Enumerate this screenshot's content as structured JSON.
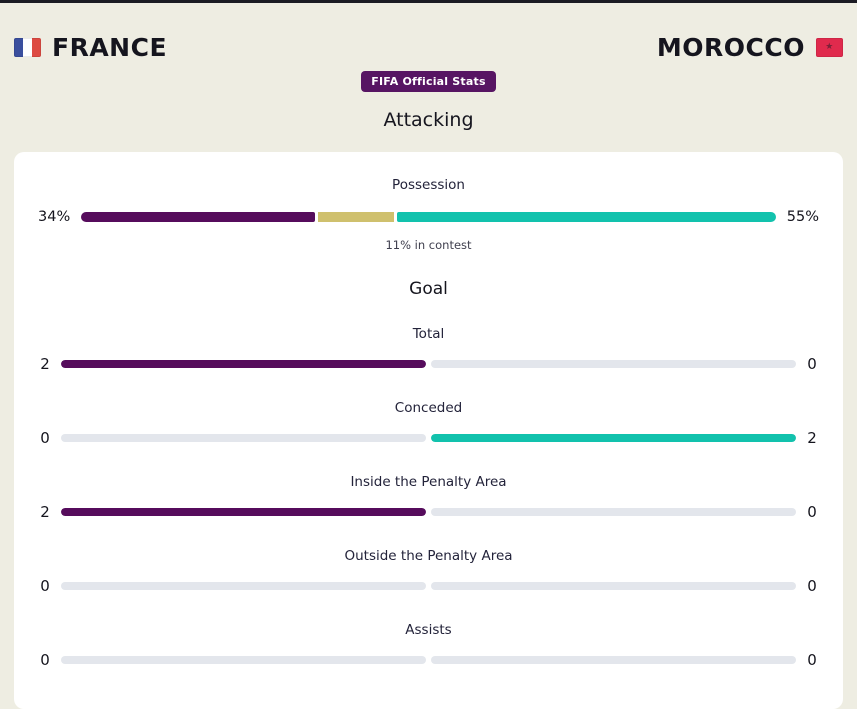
{
  "header": {
    "home_team": "FRANCE",
    "away_team": "MOROCCO",
    "badge": "FIFA Official Stats",
    "morocco_star": "★"
  },
  "page_title": "Attacking",
  "possession": {
    "label": "Possession",
    "home_pct": 34,
    "contest_pct": 11,
    "away_pct": 55,
    "home_display": "34%",
    "away_display": "55%",
    "note": "11% in contest"
  },
  "stats": {
    "section_title": "Goal",
    "rows": [
      {
        "label": "Total",
        "home": 2,
        "away": 0
      },
      {
        "label": "Conceded",
        "home": 0,
        "away": 2
      },
      {
        "label": "Inside the Penalty Area",
        "home": 2,
        "away": 0
      },
      {
        "label": "Outside the Penalty Area",
        "home": 0,
        "away": 0
      },
      {
        "label": "Assists",
        "home": 0,
        "away": 0
      }
    ]
  },
  "colors": {
    "background": "#eeede2",
    "card": "#ffffff",
    "france_purple": "#560c5c",
    "contest_gold": "#cfc06d",
    "morocco_teal": "#12c2ad",
    "empty_track": "#e3e6ec",
    "badge_purple": "#571563"
  },
  "chart_data": {
    "type": "bar",
    "title": "Attacking",
    "subtitle": "FIFA Official Stats",
    "teams": [
      "France",
      "Morocco"
    ],
    "possession": {
      "france_pct": 34,
      "in_contest_pct": 11,
      "morocco_pct": 55
    },
    "sections": [
      {
        "name": "Goal",
        "stats": [
          {
            "label": "Total",
            "france": 2,
            "morocco": 0
          },
          {
            "label": "Conceded",
            "france": 0,
            "morocco": 2
          },
          {
            "label": "Inside the Penalty Area",
            "france": 2,
            "morocco": 0
          },
          {
            "label": "Outside the Penalty Area",
            "france": 0,
            "morocco": 0
          },
          {
            "label": "Assists",
            "france": 0,
            "morocco": 0
          }
        ]
      }
    ],
    "layout": {
      "orientation": "horizontal",
      "value_labels": "both-ends",
      "category_labels": "centered-above"
    }
  }
}
